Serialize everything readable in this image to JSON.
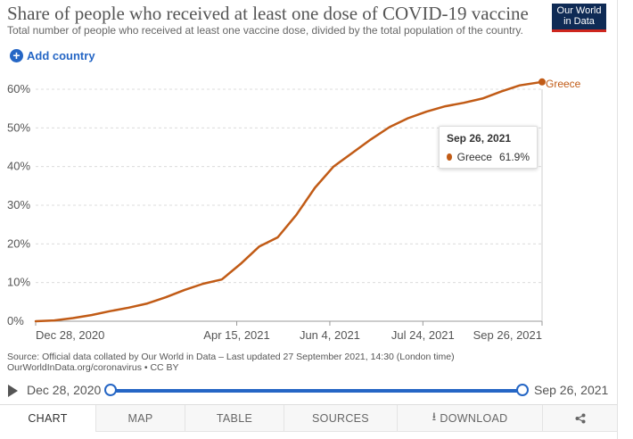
{
  "header": {
    "title": "Share of people who received at least one dose of COVID-19 vaccine",
    "subtitle": "Total number of people who received at least one vaccine dose, divided by the total population of the country.",
    "logo_line1": "Our World",
    "logo_line2": "in Data"
  },
  "add_country_label": "Add country",
  "chart_data": {
    "type": "line",
    "title": "Share of people who received at least one dose of COVID-19 vaccine",
    "ylabel": "",
    "xlabel": "",
    "ylim": [
      0,
      62
    ],
    "y_ticks": [
      "0%",
      "10%",
      "20%",
      "30%",
      "40%",
      "50%",
      "60%"
    ],
    "y_tick_values": [
      0,
      10,
      20,
      30,
      40,
      50,
      60
    ],
    "x_ticks": [
      "Dec 28, 2020",
      "Apr 15, 2021",
      "Jun 4, 2021",
      "Jul 24, 2021",
      "Sep 26, 2021"
    ],
    "x_tick_days": [
      0,
      108,
      158,
      208,
      272
    ],
    "x_range_days": [
      0,
      272
    ],
    "series": [
      {
        "name": "Greece",
        "color": "#c15b16",
        "x_days": [
          0,
          10,
          20,
          30,
          40,
          50,
          60,
          70,
          80,
          90,
          100,
          110,
          120,
          130,
          140,
          150,
          160,
          170,
          180,
          190,
          200,
          210,
          220,
          230,
          240,
          250,
          260,
          272
        ],
        "values": [
          0.0,
          0.2,
          0.8,
          1.6,
          2.6,
          3.5,
          4.6,
          6.2,
          8.1,
          9.7,
          10.8,
          14.8,
          19.3,
          21.7,
          27.5,
          34.5,
          40.0,
          43.5,
          47.0,
          50.2,
          52.5,
          54.2,
          55.6,
          56.5,
          57.6,
          59.4,
          61.0,
          61.9
        ]
      }
    ],
    "end_label": "Greece",
    "grid": true
  },
  "tooltip": {
    "date": "Sep 26, 2021",
    "country": "Greece",
    "value": "61.9%"
  },
  "source": {
    "line1": "Source: Official data collated by Our World in Data – Last updated 27 September 2021, 14:30 (London time)",
    "line2": "OurWorldInData.org/coronavirus • CC BY"
  },
  "timeline": {
    "start_label": "Dec 28, 2020",
    "end_label": "Sep 26, 2021"
  },
  "tabs": {
    "chart": "CHART",
    "map": "MAP",
    "table": "TABLE",
    "sources": "SOURCES",
    "download": "DOWNLOAD"
  }
}
